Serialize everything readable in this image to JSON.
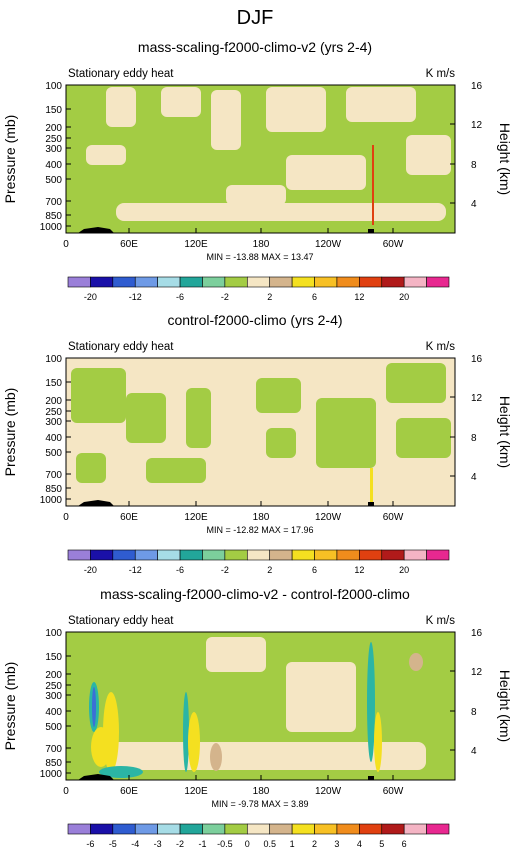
{
  "page_title": "DJF",
  "panel_titles": [
    "mass-scaling-f2000-climo-v2 (yrs 2-4)",
    "control-f2000-climo (yrs 2-4)",
    "mass-scaling-f2000-climo-v2 - control-f2000-climo"
  ],
  "panel_subtitle_left": "Stationary eddy heat",
  "panel_subtitle_right": "K m/s",
  "ylabel_left": "Pressure (mb)",
  "ylabel_right": "Height (km)",
  "stats": [
    "MIN = -13.88  MAX = 13.47",
    "MIN = -12.82  MAX = 17.96",
    "MIN = -9.78  MAX = 3.89"
  ],
  "colors": {
    "land_blank": "#f5e6c4",
    "green": "#a3cc44",
    "light_green": "#c8e68c",
    "cyan": "#2bb5a5",
    "blue": "#3b6fd6",
    "yellow": "#f4e020",
    "orange": "#f0a020",
    "tan": "#d4b48c",
    "terrain": "#000000"
  },
  "chart_data": [
    {
      "type": "heatmap",
      "title": "mass-scaling-f2000-climo-v2 (yrs 2-4)",
      "xlabel": "",
      "ylabel": "Pressure (mb)",
      "y2label": "Height (km)",
      "x_ticks": [
        "0",
        "60E",
        "120E",
        "180",
        "120W",
        "60W"
      ],
      "y_ticks": [
        "100",
        "150",
        "200",
        "250",
        "300",
        "400",
        "500",
        "700",
        "850",
        "1000"
      ],
      "y2_ticks": [
        "16",
        "12",
        "8",
        "4"
      ],
      "min": -13.88,
      "max": 13.47,
      "colorbar_labels": [
        "-20",
        "-12",
        "-6",
        "-2",
        "2",
        "6",
        "12",
        "20"
      ]
    },
    {
      "type": "heatmap",
      "title": "control-f2000-climo (yrs 2-4)",
      "xlabel": "",
      "ylabel": "Pressure (mb)",
      "y2label": "Height (km)",
      "x_ticks": [
        "0",
        "60E",
        "120E",
        "180",
        "120W",
        "60W"
      ],
      "y_ticks": [
        "100",
        "150",
        "200",
        "250",
        "300",
        "400",
        "500",
        "700",
        "850",
        "1000"
      ],
      "y2_ticks": [
        "16",
        "12",
        "8",
        "4"
      ],
      "min": -12.82,
      "max": 17.96,
      "colorbar_labels": [
        "-20",
        "-12",
        "-6",
        "-2",
        "2",
        "6",
        "12",
        "20"
      ]
    },
    {
      "type": "heatmap",
      "title": "mass-scaling-f2000-climo-v2 - control-f2000-climo",
      "xlabel": "",
      "ylabel": "Pressure (mb)",
      "y2label": "Height (km)",
      "x_ticks": [
        "0",
        "60E",
        "120E",
        "180",
        "120W",
        "60W"
      ],
      "y_ticks": [
        "100",
        "150",
        "200",
        "250",
        "300",
        "400",
        "500",
        "700",
        "850",
        "1000"
      ],
      "y2_ticks": [
        "16",
        "12",
        "8",
        "4"
      ],
      "min": -9.78,
      "max": 3.89,
      "colorbar_labels": [
        "-6",
        "-5",
        "-4",
        "-3",
        "-2",
        "-1",
        "-0.5",
        "0",
        "0.5",
        "1",
        "2",
        "3",
        "4",
        "5",
        "6"
      ]
    }
  ],
  "colorbars": [
    [
      "#9a7fd9",
      "#1a10a8",
      "#2f5cd0",
      "#6e9ae6",
      "#a6dce6",
      "#22a69a",
      "#7ccf9c",
      "#a3cc44",
      "#f5e6c4",
      "#d4b48c",
      "#f4e020",
      "#f7c024",
      "#f08c1c",
      "#e04010",
      "#b01a1a",
      "#f4b4c4",
      "#e82890"
    ],
    [
      "#9a7fd9",
      "#1a10a8",
      "#2f5cd0",
      "#6e9ae6",
      "#a6dce6",
      "#22a69a",
      "#7ccf9c",
      "#a3cc44",
      "#f5e6c4",
      "#d4b48c",
      "#f4e020",
      "#f7c024",
      "#f08c1c",
      "#e04010",
      "#b01a1a",
      "#f4b4c4",
      "#e82890"
    ],
    [
      "#9a7fd9",
      "#1a10a8",
      "#2f5cd0",
      "#6e9ae6",
      "#a6dce6",
      "#22a69a",
      "#7ccf9c",
      "#a3cc44",
      "#f5e6c4",
      "#d4b48c",
      "#f4e020",
      "#f7c024",
      "#f08c1c",
      "#e04010",
      "#b01a1a",
      "#f4b4c4",
      "#e82890"
    ]
  ]
}
